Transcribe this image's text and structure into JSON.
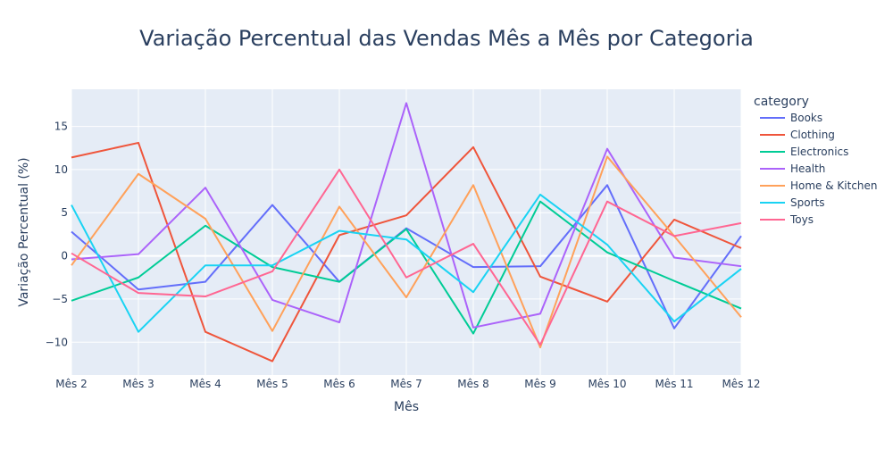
{
  "chart_data": {
    "type": "line",
    "title": "Variação Percentual das Vendas Mês a Mês por Categoria",
    "xlabel": "Mês",
    "ylabel": "Variação Percentual (%)",
    "legend_title": "category",
    "legend_position": "right",
    "grid": true,
    "categories": [
      "Mês 2",
      "Mês 3",
      "Mês 4",
      "Mês 5",
      "Mês 6",
      "Mês 7",
      "Mês 8",
      "Mês 9",
      "Mês 10",
      "Mês 11",
      "Mês 12"
    ],
    "ylim": [
      -13.8,
      19.3
    ],
    "yticks": [
      -10,
      -5,
      0,
      5,
      10,
      15
    ],
    "series": [
      {
        "name": "Books",
        "color": "#636efa",
        "values": [
          2.8,
          -3.9,
          -3.0,
          5.9,
          -3.0,
          3.2,
          -1.3,
          -1.2,
          8.2,
          -8.4,
          2.3
        ]
      },
      {
        "name": "Clothing",
        "color": "#ef553b",
        "values": [
          11.4,
          13.1,
          -8.8,
          -12.2,
          2.4,
          4.7,
          12.6,
          -2.4,
          -5.3,
          4.2,
          0.9
        ]
      },
      {
        "name": "Electronics",
        "color": "#00cc96",
        "values": [
          -5.2,
          -2.5,
          3.5,
          -1.3,
          -3.0,
          3.1,
          -9.0,
          6.3,
          0.4,
          -2.9,
          -6.1
        ]
      },
      {
        "name": "Health",
        "color": "#ab63fa",
        "values": [
          -0.4,
          0.2,
          7.9,
          -5.1,
          -7.7,
          17.7,
          -8.3,
          -6.7,
          12.4,
          -0.2,
          -1.2
        ]
      },
      {
        "name": "Home & Kitchen",
        "color": "#ffa15a",
        "values": [
          -1.1,
          9.5,
          4.3,
          -8.7,
          5.7,
          -4.8,
          8.2,
          -10.6,
          11.5,
          2.3,
          -7.1
        ]
      },
      {
        "name": "Sports",
        "color": "#19d3f3",
        "values": [
          5.9,
          -8.8,
          -1.1,
          -1.1,
          2.9,
          1.9,
          -4.2,
          7.1,
          1.3,
          -7.6,
          -1.5
        ]
      },
      {
        "name": "Toys",
        "color": "#ff6692",
        "values": [
          0.3,
          -4.3,
          -4.7,
          -1.8,
          10.0,
          -2.5,
          1.4,
          -10.3,
          6.3,
          2.3,
          3.8
        ]
      }
    ]
  }
}
